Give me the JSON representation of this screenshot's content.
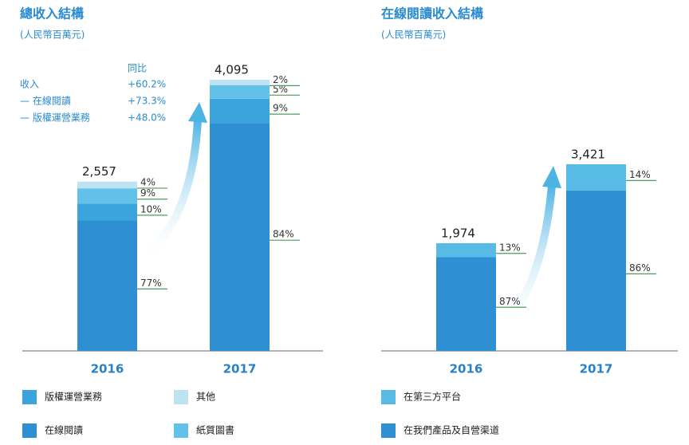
{
  "chart_data": [
    {
      "type": "stacked_bar",
      "title": "總收入結構",
      "subtitle": "(人民幣百萬元)",
      "categories": [
        "2016",
        "2017"
      ],
      "series": [
        {
          "name": "在線閱讀",
          "color": "#2e8fd2",
          "values": [
            77,
            84
          ],
          "value_labels": [
            "77%",
            "84%"
          ]
        },
        {
          "name": "版權運營業務",
          "color": "#3ba4dd",
          "values": [
            10,
            9
          ],
          "value_labels": [
            "10%",
            "9%"
          ]
        },
        {
          "name": "紙質圖書",
          "color": "#62c1e9",
          "values": [
            9,
            5
          ],
          "value_labels": [
            "9%",
            "5%"
          ]
        },
        {
          "name": "其他",
          "color": "#bde2f2",
          "values": [
            4,
            2
          ],
          "value_labels": [
            "4%",
            "2%"
          ]
        }
      ],
      "totals": {
        "values": [
          2557,
          4095
        ],
        "value_labels": [
          "2,557",
          "4,095"
        ]
      },
      "annotation": {
        "header": "同比",
        "rows": [
          {
            "label": "收入",
            "value": "+60.2%"
          },
          {
            "label": "— 在線閱讀",
            "value": "+73.3%"
          },
          {
            "label": "— 版權運營業務",
            "value": "+48.0%"
          }
        ]
      }
    },
    {
      "type": "stacked_bar",
      "title": "在線閱讀收入結構",
      "subtitle": "(人民幣百萬元)",
      "categories": [
        "2016",
        "2017"
      ],
      "series": [
        {
          "name": "在我們產品及自營渠道",
          "color": "#2e8fd2",
          "values": [
            87,
            86
          ],
          "value_labels": [
            "87%",
            "86%"
          ]
        },
        {
          "name": "在第三方平台",
          "color": "#58bbe6",
          "values": [
            13,
            14
          ],
          "value_labels": [
            "13%",
            "14%"
          ]
        }
      ],
      "totals": {
        "values": [
          1974,
          3421
        ],
        "value_labels": [
          "1,974",
          "3,421"
        ]
      }
    }
  ]
}
